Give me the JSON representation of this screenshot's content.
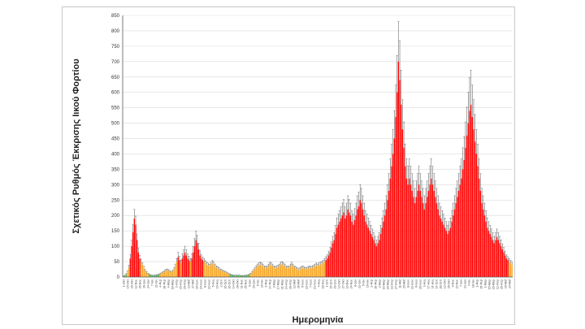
{
  "chart_data": {
    "type": "bar",
    "xlabel": "Ημερομηνία",
    "ylabel": "Σχετικός Ρυθμός Έκκρισης Ιικού Φορτίου",
    "ylim": [
      0,
      850
    ],
    "yticks": [
      0,
      50,
      100,
      150,
      200,
      250,
      300,
      350,
      400,
      450,
      500,
      550,
      600,
      650,
      700,
      750,
      800,
      850
    ],
    "grid": "horizontal",
    "error_bars": true,
    "x_tick_labels": [
      "1-Οκτ",
      "15-Οκτ",
      "29-Οκτ",
      "12-Νοε",
      "26-Νοε",
      "10-Δεκ",
      "24-Δεκ",
      "7-Ιαν",
      "21-Ιαν",
      "4-Φεβ",
      "18-Φεβ",
      "4-Μαρ",
      "18-Μαρ",
      "1-Απρ",
      "15-Απρ",
      "29-Απρ",
      "13-Μαΐ",
      "27-Μαΐ",
      "10-Ιουν",
      "24-Ιουν",
      "8-Ιουλ",
      "22-Ιουλ",
      "5-Αυγ",
      "19-Αυγ",
      "2-Σεπ",
      "16-Σεπ",
      "30-Σεπ",
      "14-Οκτ",
      "28-Οκτ",
      "11-Νοε",
      "25-Νοε",
      "9-Δεκ",
      "23-Δεκ",
      "6-Ιαν",
      "20-Ιαν",
      "3-Φεβ",
      "17-Φεβ",
      "3-Μαρ",
      "17-Μαρ",
      "31-Μαρ",
      "14-Απρ",
      "28-Απρ",
      "12-Μαΐ",
      "26-Μαΐ",
      "9-Ιουν",
      "23-Ιουν",
      "7-Ιουλ",
      "21-Ιουλ",
      "4-Αυγ",
      "18-Αυγ",
      "1-Σεπ",
      "15-Σεπ",
      "29-Σεπ",
      "13-Οκτ",
      "27-Οκτ",
      "10-Νοε",
      "24-Νοε",
      "8-Δεκ",
      "22-Δεκ",
      "5-Ιαν",
      "19-Ιαν",
      "2-Φεβ",
      "16-Φεβ",
      "2-Μαρ",
      "16-Μαρ",
      "30-Μαρ",
      "13-Απρ",
      "27-Απρ",
      "11-Μαΐ",
      "25-Μαΐ",
      "8-Ιουν",
      "22-Ιουν",
      "6-Ιουλ",
      "20-Ιουλ",
      "3-Αυγ",
      "17-Αυγ",
      "31-Αυγ",
      "14-Σεπ",
      "28-Σεπ",
      "12-Οκτ",
      "26-Οκτ",
      "9-Νοε",
      "23-Νοε",
      "7-Δεκ",
      "21-Δεκ",
      "4-Ιαν",
      "18-Ιαν",
      "1-Φεβ",
      "15-Φεβ",
      "1-Μαρ",
      "15-Μαρ",
      "29-Μαρ",
      "12-Απρ",
      "26-Απρ",
      "10-Μαΐ",
      "24-Μαΐ"
    ],
    "thresholds": {
      "green_max": 8,
      "orange_max": 50
    },
    "colors": {
      "high": "#ff0000",
      "medium": "#f5a623",
      "low": "#4caf50",
      "error_bar": "#555555",
      "grid": "#d9d9d9",
      "axis": "#595959"
    },
    "values": [
      2,
      4,
      8,
      15,
      30,
      60,
      100,
      145,
      190,
      170,
      120,
      80,
      60,
      50,
      40,
      30,
      20,
      15,
      10,
      8,
      6,
      5,
      5,
      5,
      6,
      7,
      8,
      10,
      12,
      15,
      18,
      20,
      22,
      20,
      18,
      15,
      18,
      25,
      35,
      50,
      65,
      55,
      45,
      60,
      70,
      80,
      70,
      60,
      55,
      50,
      60,
      80,
      100,
      120,
      110,
      90,
      70,
      60,
      55,
      50,
      45,
      40,
      38,
      35,
      40,
      45,
      42,
      35,
      30,
      28,
      25,
      22,
      20,
      18,
      16,
      14,
      12,
      10,
      8,
      7,
      6,
      5,
      5,
      5,
      5,
      5,
      4,
      4,
      4,
      5,
      5,
      6,
      8,
      10,
      15,
      20,
      25,
      30,
      35,
      38,
      40,
      38,
      35,
      30,
      28,
      30,
      35,
      40,
      38,
      35,
      30,
      28,
      30,
      32,
      35,
      40,
      42,
      38,
      35,
      30,
      28,
      30,
      35,
      40,
      35,
      30,
      28,
      25,
      22,
      25,
      28,
      30,
      28,
      25,
      26,
      28,
      30,
      28,
      30,
      32,
      35,
      38,
      35,
      38,
      40,
      42,
      45,
      50,
      55,
      60,
      70,
      80,
      95,
      110,
      120,
      140,
      160,
      170,
      180,
      190,
      200,
      210,
      190,
      200,
      220,
      210,
      200,
      180,
      170,
      185,
      200,
      220,
      230,
      250,
      240,
      220,
      200,
      180,
      170,
      160,
      150,
      140,
      130,
      120,
      110,
      100,
      110,
      120,
      140,
      160,
      180,
      200,
      220,
      250,
      280,
      320,
      360,
      400,
      450,
      520,
      600,
      700,
      640,
      560,
      480,
      420,
      360,
      320,
      300,
      320,
      300,
      280,
      260,
      240,
      260,
      280,
      300,
      280,
      260,
      240,
      220,
      240,
      260,
      280,
      300,
      320,
      300,
      280,
      260,
      240,
      220,
      200,
      190,
      180,
      170,
      160,
      150,
      140,
      150,
      160,
      180,
      200,
      220,
      240,
      260,
      280,
      300,
      320,
      350,
      380,
      420,
      460,
      500,
      540,
      560,
      520,
      480,
      440,
      400,
      360,
      320,
      280,
      240,
      220,
      200,
      180,
      160,
      150,
      140,
      130,
      120,
      110,
      120,
      130,
      120,
      110,
      100,
      90,
      80,
      70,
      60,
      55,
      50,
      45,
      40
    ],
    "errors": [
      1,
      2,
      3,
      5,
      8,
      12,
      20,
      25,
      30,
      28,
      20,
      15,
      10,
      8,
      6,
      5,
      4,
      3,
      2,
      2,
      1,
      1,
      1,
      1,
      1,
      1,
      2,
      2,
      2,
      3,
      3,
      4,
      4,
      4,
      3,
      3,
      4,
      5,
      7,
      10,
      15,
      12,
      10,
      15,
      18,
      20,
      18,
      15,
      12,
      10,
      15,
      20,
      25,
      30,
      25,
      20,
      15,
      12,
      10,
      10,
      8,
      8,
      7,
      6,
      8,
      9,
      8,
      7,
      6,
      5,
      5,
      4,
      4,
      3,
      3,
      3,
      2,
      2,
      2,
      1,
      1,
      1,
      1,
      1,
      1,
      1,
      1,
      1,
      1,
      1,
      1,
      1,
      2,
      2,
      3,
      4,
      5,
      6,
      7,
      8,
      8,
      8,
      7,
      6,
      6,
      6,
      7,
      8,
      8,
      7,
      6,
      6,
      6,
      6,
      7,
      8,
      8,
      8,
      7,
      6,
      6,
      6,
      7,
      8,
      7,
      6,
      6,
      5,
      5,
      5,
      6,
      6,
      6,
      5,
      5,
      6,
      6,
      6,
      6,
      6,
      7,
      8,
      7,
      8,
      8,
      8,
      9,
      10,
      11,
      12,
      14,
      16,
      19,
      22,
      24,
      28,
      32,
      34,
      36,
      38,
      40,
      42,
      38,
      40,
      44,
      42,
      40,
      36,
      34,
      37,
      40,
      44,
      46,
      50,
      48,
      44,
      40,
      36,
      34,
      32,
      30,
      28,
      26,
      24,
      22,
      20,
      22,
      24,
      28,
      32,
      36,
      40,
      44,
      50,
      56,
      64,
      72,
      80,
      90,
      104,
      120,
      130,
      128,
      112,
      96,
      84,
      72,
      64,
      60,
      64,
      60,
      56,
      52,
      48,
      52,
      56,
      60,
      56,
      52,
      48,
      44,
      48,
      52,
      56,
      60,
      64,
      60,
      56,
      52,
      48,
      44,
      40,
      38,
      36,
      34,
      32,
      30,
      28,
      30,
      32,
      36,
      40,
      44,
      48,
      52,
      56,
      60,
      64,
      70,
      76,
      84,
      92,
      100,
      108,
      112,
      104,
      96,
      88,
      80,
      72,
      64,
      56,
      48,
      44,
      40,
      36,
      32,
      30,
      28,
      26,
      24,
      22,
      24,
      26,
      24,
      22,
      20,
      18,
      16,
      14,
      12,
      11,
      10,
      9,
      8
    ]
  }
}
